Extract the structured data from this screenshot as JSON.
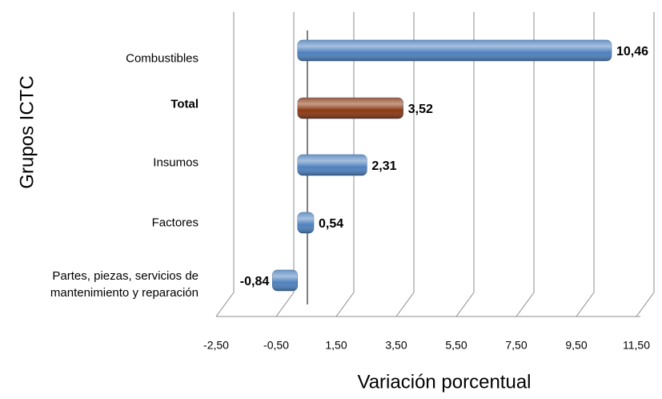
{
  "chart_data": {
    "type": "bar",
    "orientation": "horizontal",
    "y_label": "Grupos ICTC",
    "x_label": "Variación porcentual",
    "categories": [
      "Combustibles",
      "Total",
      "Insumos",
      "Factores",
      "Partes, piezas, servicios de mantenimiento y reparación"
    ],
    "values": [
      10.46,
      3.52,
      2.31,
      0.54,
      -0.84
    ],
    "value_labels": [
      "10,46",
      "3,52",
      "2,31",
      "0,54",
      "-0,84"
    ],
    "colors": [
      "#4f81bd",
      "#8b3a14",
      "#4f81bd",
      "#4f81bd",
      "#4f81bd"
    ],
    "xlim": [
      -2.5,
      11.5
    ],
    "xticks": [
      {
        "value": -2.5,
        "label": "-2,50"
      },
      {
        "value": -0.5,
        "label": "-0,50"
      },
      {
        "value": 1.5,
        "label": "1,50"
      },
      {
        "value": 3.5,
        "label": "3,50"
      },
      {
        "value": 5.5,
        "label": "5,50"
      },
      {
        "value": 7.5,
        "label": "7,50"
      },
      {
        "value": 9.5,
        "label": "9,50"
      },
      {
        "value": 11.5,
        "label": "11,50"
      }
    ],
    "grid": true
  }
}
